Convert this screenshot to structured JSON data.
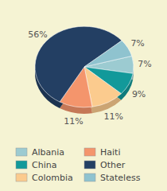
{
  "chart_data": {
    "type": "pie",
    "categories": [
      "Albania",
      "China",
      "Colombia",
      "Haiti",
      "Other",
      "Stateless"
    ],
    "values": [
      7,
      9,
      11,
      11,
      56,
      7
    ],
    "value_labels": [
      "7%",
      "9%",
      "11%",
      "11%",
      "56%",
      "7%"
    ],
    "colors": [
      "#9ccbd1",
      "#12999a",
      "#fbcb8e",
      "#f4956c",
      "#233f63",
      "#8fc3cf"
    ],
    "data_labels": true,
    "legend": "bottom"
  }
}
